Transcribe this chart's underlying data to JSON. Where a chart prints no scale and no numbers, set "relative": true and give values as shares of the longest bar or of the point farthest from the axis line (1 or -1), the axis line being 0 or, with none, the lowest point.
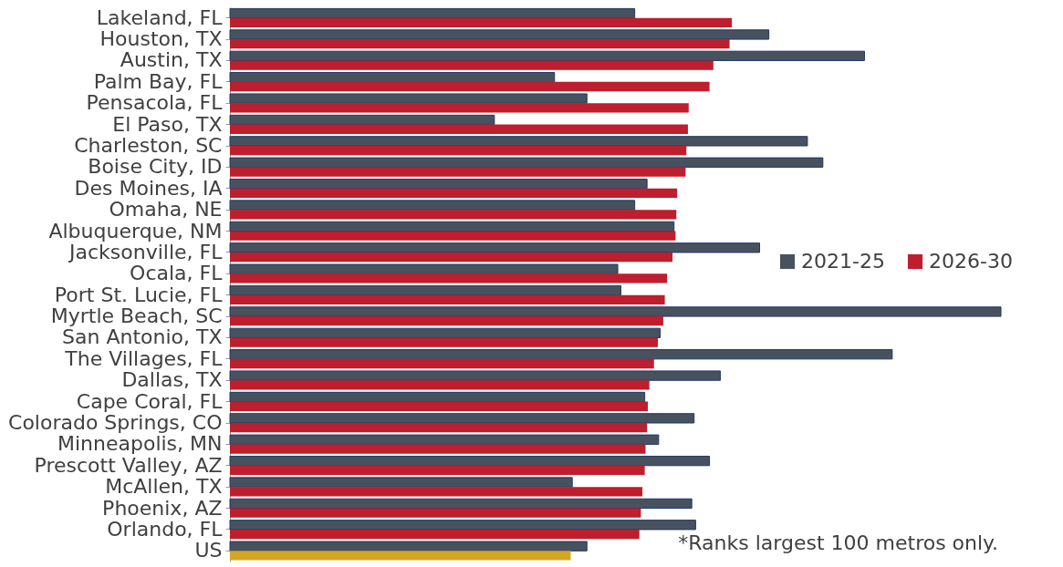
{
  "chart_data": {
    "type": "bar",
    "orientation": "horizontal",
    "relative": true,
    "legend": "right",
    "categories": [
      "Lakeland, FL",
      "Houston, TX",
      "Austin, TX",
      "Palm Bay, FL",
      "Pensacola, FL",
      "El Paso, TX",
      "Charleston, SC",
      "Boise City, ID",
      "Des Moines, IA",
      "Omaha, NE",
      "Albuquerque, NM",
      "Jacksonville, FL",
      "Ocala, FL",
      "Port St. Lucie, FL",
      "Myrtle Beach, SC",
      "San Antonio, TX",
      "The Villages, FL",
      "Dallas, TX",
      "Cape Coral, FL",
      "Colorado Springs, CO",
      "Minneapolis, MN",
      "Prescott Valley, AZ",
      "McAllen, TX",
      "Phoenix, AZ",
      "Orlando, FL",
      "US"
    ],
    "series": [
      {
        "name": "2021-25",
        "color": "#48525e",
        "values": [
          0.525,
          0.699,
          0.823,
          0.421,
          0.463,
          0.343,
          0.749,
          0.769,
          0.541,
          0.525,
          0.576,
          0.687,
          0.503,
          0.507,
          1.0,
          0.558,
          0.859,
          0.636,
          0.538,
          0.602,
          0.556,
          0.622,
          0.444,
          0.599,
          0.604,
          0.463
        ]
      },
      {
        "name": "2026-30",
        "color": "#be1e2d",
        "colors": [
          "#be1e2d",
          "#be1e2d",
          "#be1e2d",
          "#be1e2d",
          "#be1e2d",
          "#be1e2d",
          "#be1e2d",
          "#be1e2d",
          "#be1e2d",
          "#be1e2d",
          "#be1e2d",
          "#be1e2d",
          "#be1e2d",
          "#be1e2d",
          "#be1e2d",
          "#be1e2d",
          "#be1e2d",
          "#be1e2d",
          "#be1e2d",
          "#be1e2d",
          "#be1e2d",
          "#be1e2d",
          "#be1e2d",
          "#be1e2d",
          "#be1e2d",
          "#d4a520"
        ],
        "values": [
          0.651,
          0.648,
          0.627,
          0.622,
          0.595,
          0.594,
          0.592,
          0.591,
          0.58,
          0.579,
          0.578,
          0.574,
          0.567,
          0.564,
          0.562,
          0.555,
          0.55,
          0.544,
          0.542,
          0.541,
          0.539,
          0.538,
          0.535,
          0.533,
          0.531,
          0.442
        ]
      }
    ],
    "annotations": [
      "*Ranks largest 100 metros only."
    ]
  }
}
